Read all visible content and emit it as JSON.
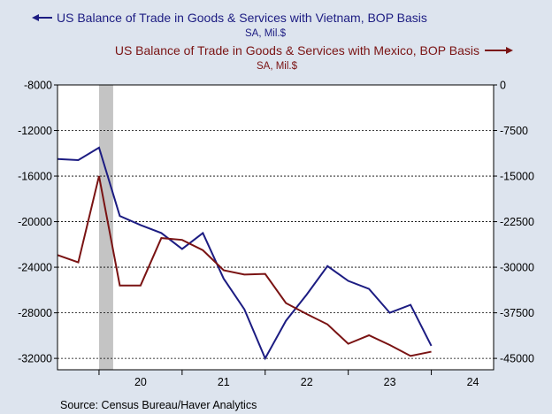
{
  "colors": {
    "background": "#dde4ee",
    "plot_background": "#ffffff",
    "vietnam": "#1c1c82",
    "mexico": "#7a1313",
    "recession": "#c4c4c4",
    "grid": "#000000"
  },
  "source": "Source:  Census Bureau/Haver Analytics",
  "chart_data": {
    "type": "line",
    "x_axis": {
      "range": [
        2019.5,
        2024.75
      ],
      "tick_labels": [
        "20",
        "21",
        "22",
        "23",
        "24"
      ]
    },
    "left_axis": {
      "range": [
        -33000,
        -8000
      ],
      "ticks": [
        -8000,
        -12000,
        -16000,
        -20000,
        -24000,
        -28000,
        -32000
      ],
      "tick_labels": [
        "-8000",
        "-12000",
        "-16000",
        "-20000",
        "-24000",
        "-28000",
        "-32000"
      ]
    },
    "right_axis": {
      "range": [
        -46875,
        0
      ],
      "ticks": [
        0,
        -7500,
        -15000,
        -22500,
        -30000,
        -37500,
        -45000
      ],
      "tick_labels": [
        "0",
        "-7500",
        "-15000",
        "-22500",
        "-30000",
        "-37500",
        "-45000"
      ]
    },
    "grid": "horizontal dashed",
    "recession_shading": [
      2020.0,
      2020.17
    ],
    "series": [
      {
        "name": "US Balance of Trade in Goods & Services with Vietnam, BOP Basis",
        "unit": "SA, Mil.$",
        "axis": "left",
        "arrow": "left",
        "x": [
          2019.5,
          2019.75,
          2020.0,
          2020.25,
          2020.5,
          2020.75,
          2021.0,
          2021.25,
          2021.5,
          2021.75,
          2022.0,
          2022.25,
          2022.5,
          2022.75,
          2023.0,
          2023.25,
          2023.5,
          2023.75,
          2024.0
        ],
        "values": [
          -14500,
          -14600,
          -13500,
          -19500,
          -20300,
          -21000,
          -22400,
          -21000,
          -25000,
          -27700,
          -32000,
          -28700,
          -26400,
          -23900,
          -25200,
          -25900,
          -28000,
          -27300,
          -30900
        ]
      },
      {
        "name": "US Balance of Trade in Goods & Services with Mexico, BOP Basis",
        "unit": "SA, Mil.$",
        "axis": "right",
        "arrow": "right",
        "x": [
          2019.5,
          2019.75,
          2020.0,
          2020.25,
          2020.5,
          2020.75,
          2021.0,
          2021.25,
          2021.5,
          2021.75,
          2022.0,
          2022.25,
          2022.5,
          2022.75,
          2023.0,
          2023.25,
          2023.5,
          2023.75,
          2024.0
        ],
        "values": [
          -28000,
          -29200,
          -15000,
          -33000,
          -33000,
          -25200,
          -25500,
          -27200,
          -30500,
          -31200,
          -31100,
          -35900,
          -37700,
          -39400,
          -42600,
          -41200,
          -42800,
          -44600,
          -43900
        ]
      }
    ]
  }
}
